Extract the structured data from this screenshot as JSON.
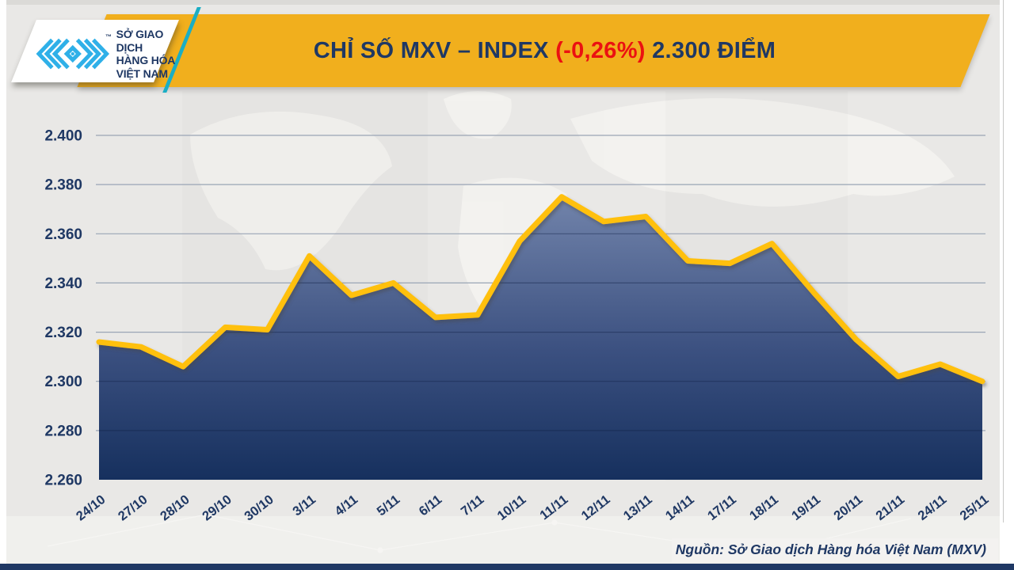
{
  "header": {
    "logo": {
      "line1": "SỞ GIAO DỊCH",
      "line2": "HÀNG HÓA",
      "line3": "VIỆT NAM",
      "trademark": "™"
    },
    "title": {
      "text": "CHỈ SỐ MXV – INDEX ",
      "change": "(-0,26%)",
      "points": " 2.300 ĐIỂM"
    }
  },
  "chart_data": {
    "type": "area",
    "title": "CHỈ SỐ MXV – INDEX (-0,26%) 2.300 ĐIỂM",
    "categories": [
      "24/10",
      "27/10",
      "28/10",
      "29/10",
      "30/10",
      "3/11",
      "4/11",
      "5/11",
      "6/11",
      "7/11",
      "10/11",
      "11/11",
      "12/11",
      "13/11",
      "14/11",
      "17/11",
      "18/11",
      "19/11",
      "20/11",
      "21/11",
      "24/11",
      "25/11"
    ],
    "values": [
      2316,
      2314,
      2306,
      2322,
      2321,
      2351,
      2335,
      2340,
      2326,
      2327,
      2357,
      2375,
      2365,
      2367,
      2349,
      2348,
      2356,
      2336,
      2317,
      2302,
      2307,
      2300
    ],
    "ylim": [
      2260,
      2400
    ],
    "y_ticks": [
      {
        "v": 2400,
        "label": "2.400"
      },
      {
        "v": 2380,
        "label": "2.380"
      },
      {
        "v": 2360,
        "label": "2.360"
      },
      {
        "v": 2340,
        "label": "2.340"
      },
      {
        "v": 2320,
        "label": "2.320"
      },
      {
        "v": 2300,
        "label": "2.300"
      },
      {
        "v": 2280,
        "label": "2.280"
      },
      {
        "v": 2260,
        "label": "2.260"
      }
    ],
    "xlabel": "",
    "ylabel": "",
    "grid": "horizontal",
    "legend": "none",
    "line_color": "#FFC010",
    "fill_gradient_top": "#7284AB",
    "fill_gradient_mid": "#3B5080",
    "fill_gradient_bottom": "#16305E",
    "grid_color": "#9AA5B5",
    "label_color": "#1F3864"
  },
  "footer": {
    "source": "Nguồn: Sở Giao dịch Hàng hóa Việt Nam (MXV)"
  },
  "colors": {
    "banner_yellow": "#F1AF1D",
    "navy": "#1F3864",
    "change_red": "#EB1111",
    "teal_accent": "#1BAEC4",
    "logo_blue": "#2FB0E8",
    "background": "#E9E8E6"
  }
}
